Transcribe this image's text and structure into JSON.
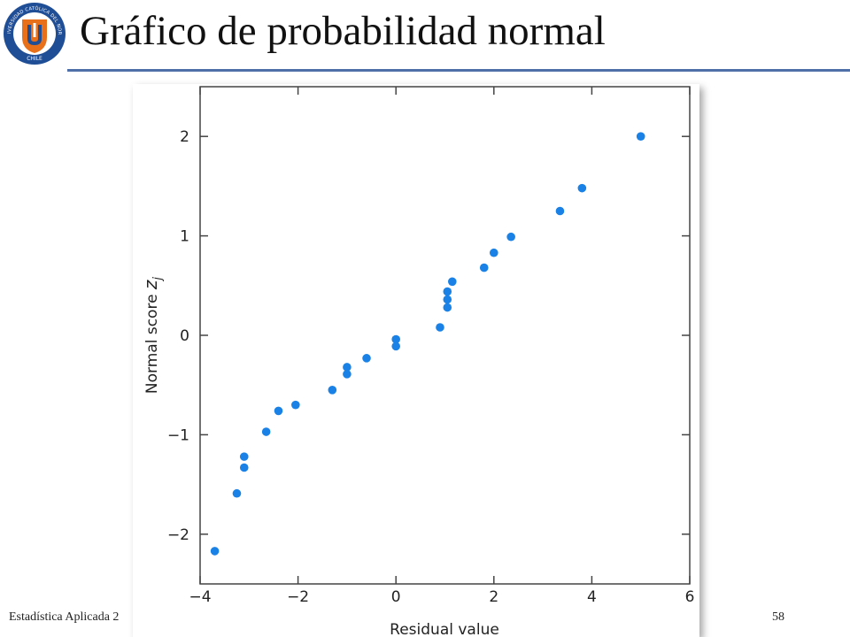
{
  "slide": {
    "title": "Gráfico de probabilidad normal",
    "footer_left": "Estadística Aplicada 2",
    "page_number": "58"
  },
  "logo": {
    "ring_text": "UNIVERSIDAD CATÓLICA DEL NORTE",
    "country": "CHILE",
    "colors": {
      "ring": "#1f4e96",
      "shield": "#e8701a"
    }
  },
  "colors": {
    "points": "#1a82e6",
    "title_rule": "#4f6fa8"
  },
  "chart_data": {
    "type": "scatter",
    "xlabel": "Residual value",
    "ylabel_main": "Normal score ",
    "ylabel_var": "z",
    "ylabel_sub": "j",
    "xlim": [
      -4,
      6
    ],
    "ylim": [
      -2.5,
      2.5
    ],
    "xticks": [
      -4,
      -2,
      0,
      2,
      4,
      6
    ],
    "yticks": [
      -2,
      -1,
      0,
      1,
      2
    ],
    "xtick_labels": [
      "−4",
      "−2",
      "0",
      "2",
      "4",
      "6"
    ],
    "ytick_labels": [
      "−2",
      "−1",
      "0",
      "1",
      "2"
    ],
    "grid": false,
    "points": [
      {
        "x": -3.7,
        "y": -2.17
      },
      {
        "x": -3.25,
        "y": -1.59
      },
      {
        "x": -3.1,
        "y": -1.33
      },
      {
        "x": -3.1,
        "y": -1.22
      },
      {
        "x": -2.65,
        "y": -0.97
      },
      {
        "x": -2.4,
        "y": -0.76
      },
      {
        "x": -2.05,
        "y": -0.7
      },
      {
        "x": -1.3,
        "y": -0.55
      },
      {
        "x": -1.0,
        "y": -0.39
      },
      {
        "x": -1.0,
        "y": -0.32
      },
      {
        "x": -0.6,
        "y": -0.23
      },
      {
        "x": 0.0,
        "y": -0.11
      },
      {
        "x": 0.0,
        "y": -0.04
      },
      {
        "x": 0.9,
        "y": 0.08
      },
      {
        "x": 1.05,
        "y": 0.28
      },
      {
        "x": 1.05,
        "y": 0.36
      },
      {
        "x": 1.05,
        "y": 0.44
      },
      {
        "x": 1.15,
        "y": 0.54
      },
      {
        "x": 1.8,
        "y": 0.68
      },
      {
        "x": 2.0,
        "y": 0.83
      },
      {
        "x": 2.35,
        "y": 0.99
      },
      {
        "x": 3.35,
        "y": 1.25
      },
      {
        "x": 3.8,
        "y": 1.48
      },
      {
        "x": 5.0,
        "y": 2.0
      }
    ]
  }
}
